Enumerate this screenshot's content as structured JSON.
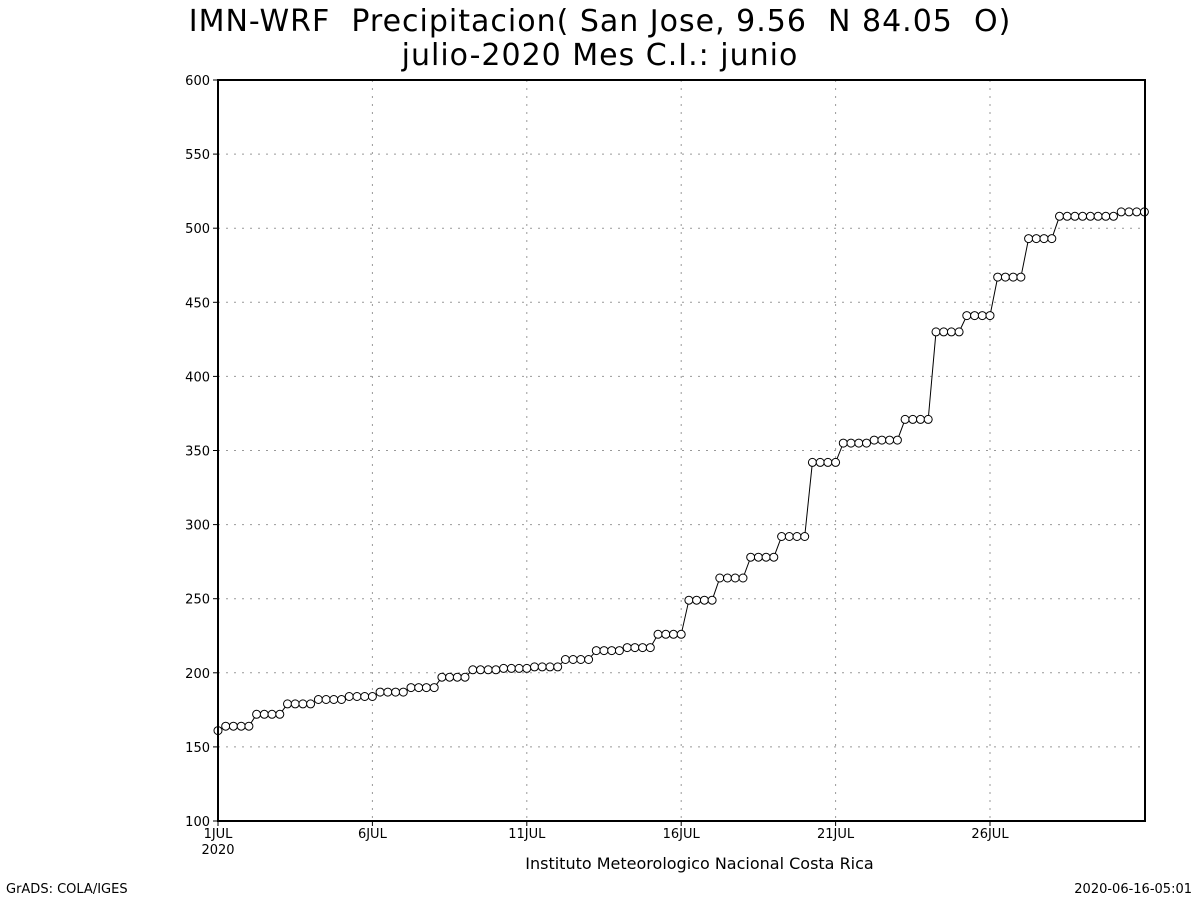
{
  "title_line1": "IMN-WRF  Precipitacion( San Jose, 9.56  N 84.05  O)",
  "title_line2": "julio-2020 Mes C.I.: junio",
  "footer_left": "GrADS: COLA/IGES",
  "footer_right": "2020-06-16-05:01",
  "chart_data": {
    "type": "line",
    "title": "IMN-WRF  Precipitacion( San Jose, 9.56  N 84.05  O)",
    "subtitle": "julio-2020 Mes C.I.: junio",
    "xlabel": "Instituto Meteorologico Nacional Costa Rica",
    "ylabel": "",
    "ylim": [
      100,
      600
    ],
    "yticks": [
      100,
      150,
      200,
      250,
      300,
      350,
      400,
      450,
      500,
      550,
      600
    ],
    "xlim_days": [
      1,
      31
    ],
    "xticks": [
      {
        "day": 1,
        "label": "1JUL",
        "sublabel": "2020"
      },
      {
        "day": 6,
        "label": "6JUL",
        "sublabel": ""
      },
      {
        "day": 11,
        "label": "11JUL",
        "sublabel": ""
      },
      {
        "day": 16,
        "label": "16JUL",
        "sublabel": ""
      },
      {
        "day": 21,
        "label": "21JUL",
        "sublabel": ""
      },
      {
        "day": 26,
        "label": "26JUL",
        "sublabel": ""
      }
    ],
    "grid": true,
    "marker": "open-circle",
    "series": [
      {
        "name": "",
        "step_days": 0.25,
        "start_day": 1,
        "values": [
          161,
          164,
          164,
          164,
          164,
          172,
          172,
          172,
          172,
          179,
          179,
          179,
          179,
          182,
          182,
          182,
          182,
          184,
          184,
          184,
          184,
          187,
          187,
          187,
          187,
          190,
          190,
          190,
          190,
          197,
          197,
          197,
          197,
          202,
          202,
          202,
          202,
          203,
          203,
          203,
          203,
          204,
          204,
          204,
          204,
          209,
          209,
          209,
          209,
          215,
          215,
          215,
          215,
          217,
          217,
          217,
          217,
          226,
          226,
          226,
          226,
          249,
          249,
          249,
          249,
          264,
          264,
          264,
          264,
          278,
          278,
          278,
          278,
          292,
          292,
          292,
          292,
          342,
          342,
          342,
          342,
          355,
          355,
          355,
          355,
          357,
          357,
          357,
          357,
          371,
          371,
          371,
          371,
          430,
          430,
          430,
          430,
          441,
          441,
          441,
          441,
          467,
          467,
          467,
          467,
          493,
          493,
          493,
          493,
          508,
          508,
          508,
          508,
          508,
          508,
          508,
          508,
          511,
          511,
          511,
          511
        ]
      }
    ]
  }
}
